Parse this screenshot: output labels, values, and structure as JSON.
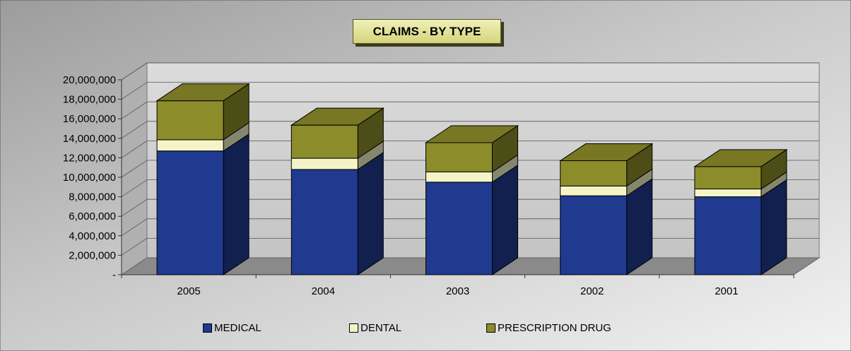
{
  "chart_data": {
    "type": "bar",
    "stacked": true,
    "three_d": true,
    "title": "CLAIMS - BY TYPE",
    "xlabel": "",
    "ylabel": "",
    "categories": [
      "2005",
      "2004",
      "2003",
      "2002",
      "2001"
    ],
    "series": [
      {
        "name": "MEDICAL",
        "color": "#1f3a8f",
        "values": [
          12700000,
          10800000,
          9500000,
          8100000,
          8000000
        ]
      },
      {
        "name": "DENTAL",
        "color": "#f4f4c8",
        "values": [
          1150000,
          1150000,
          1050000,
          1000000,
          800000
        ]
      },
      {
        "name": "PRESCRIPTION DRUG",
        "color": "#8c8c2a",
        "values": [
          4000000,
          3400000,
          3000000,
          2600000,
          2300000
        ]
      }
    ],
    "yticks": [
      "20,000,000",
      "18,000,000",
      "16,000,000",
      "14,000,000",
      "12,000,000",
      "10,000,000",
      "8,000,000",
      "6,000,000",
      "4,000,000",
      "2,000,000",
      "-"
    ],
    "ylim": [
      0,
      20000000
    ],
    "grid": true,
    "legend": "bottom"
  }
}
